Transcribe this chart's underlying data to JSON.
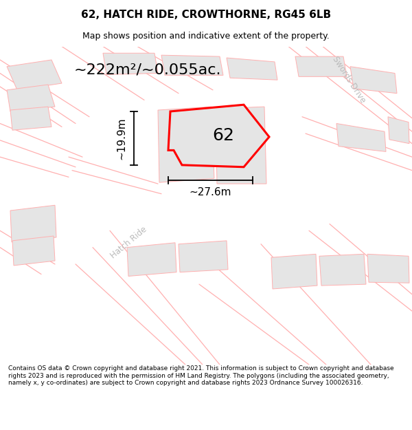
{
  "title": "62, HATCH RIDE, CROWTHORNE, RG45 6LB",
  "subtitle": "Map shows position and indicative extent of the property.",
  "area_text": "~222m²/~0.055ac.",
  "label_62": "62",
  "dim_width": "~27.6m",
  "dim_height": "~19.9m",
  "road_label": "Hatch Ride",
  "road_label2": "Swords Drive",
  "footer": "Contains OS data © Crown copyright and database right 2021. This information is subject to Crown copyright and database rights 2023 and is reproduced with the permission of HM Land Registry. The polygons (including the associated geometry, namely x, y co-ordinates) are subject to Crown copyright and database rights 2023 Ordnance Survey 100026316.",
  "bg_color": "#ffffff",
  "plot_fill": "#e5e5e5",
  "red_line_color": "#ff0000",
  "pink_line_color": "#ffb0b0",
  "black_color": "#000000",
  "road_label_color": "#bbbbbb",
  "title_fontsize": 11,
  "subtitle_fontsize": 9,
  "footer_fontsize": 6.5,
  "area_fontsize": 16,
  "dim_fontsize": 11,
  "label_fontsize": 18
}
